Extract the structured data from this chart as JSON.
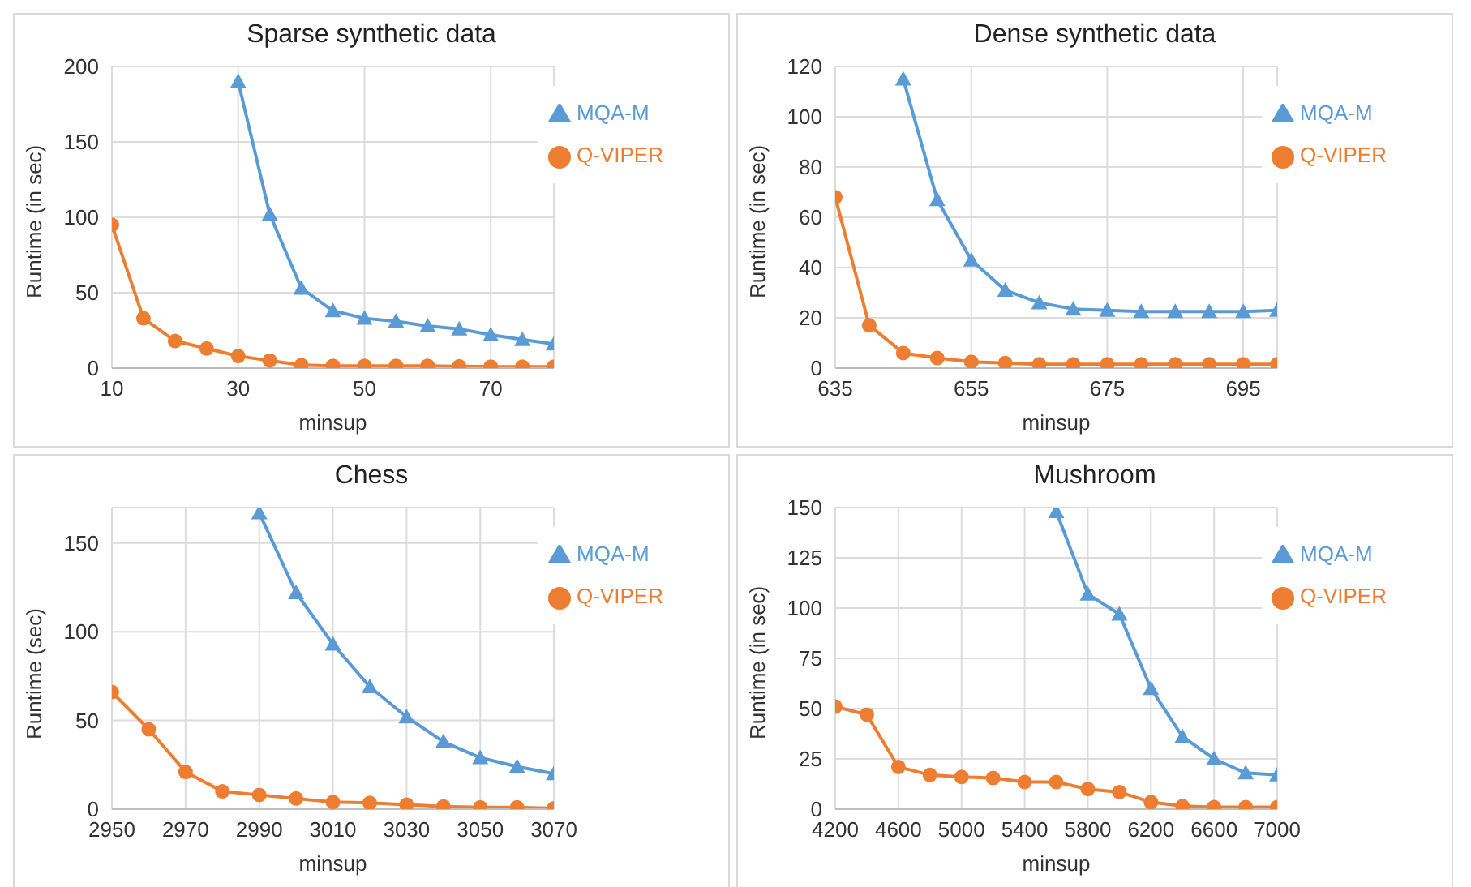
{
  "chart_data": [
    {
      "type": "line",
      "title": "Sparse synthetic data",
      "xlabel": "minsup",
      "ylabel": "Runtime (in sec)",
      "xlim": [
        10,
        80
      ],
      "xticks": [
        10,
        30,
        50,
        70
      ],
      "ylim": [
        0,
        200
      ],
      "yticks": [
        0,
        50,
        100,
        150,
        200
      ],
      "grid": true,
      "legend": "top right",
      "series": [
        {
          "name": "MQA-M",
          "color": "#5b9bd5",
          "marker": "triangle",
          "x": [
            30,
            35,
            40,
            45,
            50,
            55,
            60,
            65,
            70,
            75,
            80
          ],
          "values": [
            190,
            102,
            53,
            38,
            33,
            31,
            28,
            26,
            22,
            19,
            16
          ]
        },
        {
          "name": "Q-VIPER",
          "color": "#ed7d31",
          "marker": "circle",
          "x": [
            10,
            15,
            20,
            25,
            30,
            35,
            40,
            45,
            50,
            55,
            60,
            65,
            70,
            75,
            80
          ],
          "values": [
            95,
            33,
            18,
            13,
            8,
            5,
            2,
            1.5,
            1.5,
            1.5,
            1.5,
            1.2,
            1,
            1,
            1
          ]
        }
      ]
    },
    {
      "type": "line",
      "title": "Dense synthetic data",
      "xlabel": "minsup",
      "ylabel": "Runtime (in sec)",
      "xlim": [
        635,
        700
      ],
      "xticks": [
        635,
        655,
        675,
        695
      ],
      "ylim": [
        0,
        120
      ],
      "yticks": [
        0,
        20,
        40,
        60,
        80,
        100,
        120
      ],
      "grid": true,
      "legend": "top right",
      "series": [
        {
          "name": "MQA-M",
          "color": "#5b9bd5",
          "marker": "triangle",
          "x": [
            645,
            650,
            655,
            660,
            665,
            670,
            675,
            680,
            685,
            690,
            695,
            700
          ],
          "values": [
            115,
            67,
            43,
            31,
            26,
            23.5,
            23,
            22.5,
            22.5,
            22.5,
            22.5,
            23
          ]
        },
        {
          "name": "Q-VIPER",
          "color": "#ed7d31",
          "marker": "circle",
          "x": [
            635,
            640,
            645,
            650,
            655,
            660,
            665,
            670,
            675,
            680,
            685,
            690,
            695,
            700
          ],
          "values": [
            68,
            17,
            6,
            4,
            2.5,
            2,
            1.5,
            1.5,
            1.5,
            1.5,
            1.5,
            1.5,
            1.5,
            1.5
          ]
        }
      ]
    },
    {
      "type": "line",
      "title": "Chess",
      "xlabel": "minsup",
      "ylabel": "Runtime (sec)",
      "xlim": [
        2950,
        3070
      ],
      "xticks": [
        2950,
        2970,
        2990,
        3010,
        3030,
        3050,
        3070
      ],
      "ylim": [
        0,
        170
      ],
      "yticks": [
        0,
        50,
        100,
        150
      ],
      "grid": true,
      "legend": "top right",
      "series": [
        {
          "name": "MQA-M",
          "color": "#5b9bd5",
          "marker": "triangle",
          "x": [
            2990,
            3000,
            3010,
            3020,
            3030,
            3040,
            3050,
            3060,
            3070
          ],
          "values": [
            167,
            122,
            93,
            69,
            52,
            38,
            29,
            24,
            20
          ]
        },
        {
          "name": "Q-VIPER",
          "color": "#ed7d31",
          "marker": "circle",
          "x": [
            2950,
            2960,
            2970,
            2980,
            2990,
            3000,
            3010,
            3020,
            3030,
            3040,
            3050,
            3060,
            3070
          ],
          "values": [
            66,
            45,
            21,
            10,
            8,
            6,
            4,
            3.5,
            2.5,
            1.5,
            1,
            1,
            0.5
          ]
        }
      ]
    },
    {
      "type": "line",
      "title": "Mushroom",
      "xlabel": "minsup",
      "ylabel": "Runtime (in sec)",
      "xlim": [
        4200,
        7000
      ],
      "xticks": [
        4200,
        4600,
        5000,
        5400,
        5800,
        6200,
        6600,
        7000
      ],
      "ylim": [
        0,
        150
      ],
      "yticks": [
        0,
        25,
        50,
        75,
        100,
        125,
        150
      ],
      "grid": true,
      "legend": "top right",
      "series": [
        {
          "name": "MQA-M",
          "color": "#5b9bd5",
          "marker": "triangle",
          "x": [
            5600,
            5800,
            6000,
            6200,
            6400,
            6600,
            6800,
            7000
          ],
          "values": [
            148,
            107,
            97,
            60,
            36,
            25,
            18,
            17
          ]
        },
        {
          "name": "Q-VIPER",
          "color": "#ed7d31",
          "marker": "circle",
          "x": [
            4200,
            4400,
            4600,
            4800,
            5000,
            5200,
            5400,
            5600,
            5800,
            6000,
            6200,
            6400,
            6600,
            6800,
            7000
          ],
          "values": [
            51,
            47,
            21,
            17,
            16,
            15.5,
            13.5,
            13.5,
            10,
            8.5,
            3.5,
            1.5,
            1,
            1,
            1
          ]
        }
      ]
    }
  ]
}
